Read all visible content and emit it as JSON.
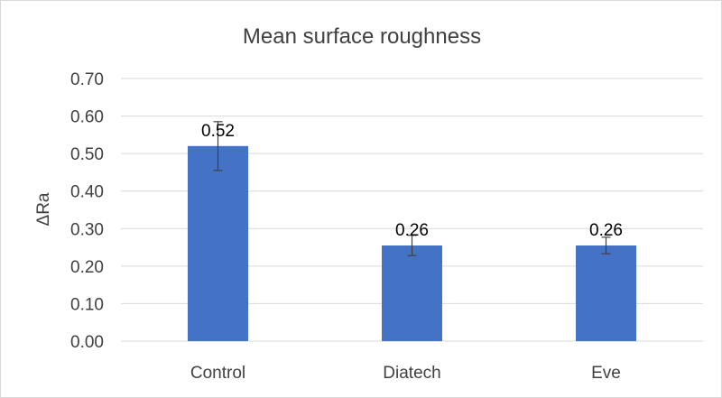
{
  "chart_data": {
    "type": "bar",
    "title": "Mean surface roughness",
    "xlabel": "",
    "ylabel": "ΔRa",
    "categories": [
      "Control",
      "Diatech",
      "Eve"
    ],
    "values": [
      0.52,
      0.255,
      0.255
    ],
    "error": [
      0.065,
      0.027,
      0.022
    ],
    "data_labels": [
      "0.52",
      "0.26",
      "0.26"
    ],
    "ylim": [
      0,
      0.7
    ],
    "yticks": [
      0,
      0.1,
      0.2,
      0.3,
      0.4,
      0.5,
      0.6,
      0.7
    ],
    "ytick_labels": [
      "0.00",
      "0.10",
      "0.20",
      "0.30",
      "0.40",
      "0.50",
      "0.60",
      "0.70"
    ],
    "grid": true,
    "legend": "none",
    "colors": {
      "bar": "#4472c4",
      "grid": "#d9d9d9",
      "text": "#404040",
      "error_bar": "#404040"
    }
  }
}
